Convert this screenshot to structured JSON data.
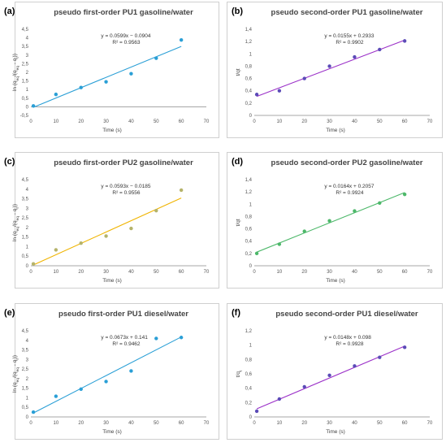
{
  "chart_data": [
    {
      "type": "scatter",
      "panel_label": "(a)",
      "title": "pseudo first-order PU1 gasoline/water",
      "xlabel": "Time (s)",
      "ylabel": "ln (q_eq/(q_eq - q_t))",
      "xlim": [
        0,
        70
      ],
      "xticks": [
        0,
        10,
        20,
        30,
        40,
        50,
        60,
        70
      ],
      "ylim": [
        -0.5,
        4.5
      ],
      "yticks": [
        "-0,5",
        "0",
        "0,5",
        "1",
        "1,5",
        "2",
        "2,5",
        "3",
        "3,5",
        "4",
        "4,5"
      ],
      "x": [
        1,
        10,
        20,
        30,
        40,
        50,
        60
      ],
      "y": [
        0.05,
        0.72,
        1.12,
        1.45,
        1.92,
        2.82,
        3.88
      ],
      "trendline": {
        "slope": 0.0599,
        "intercept": -0.0904
      },
      "equation": "y = 0.0599x − 0.0904",
      "r2": "R² = 0.9563",
      "color": "#2a9fd6",
      "line_color": "#2a9fd6",
      "grid": false
    },
    {
      "type": "scatter",
      "panel_label": "(b)",
      "title": "pseudo second-order PU1 gasoline/water",
      "xlabel": "Time (s)",
      "ylabel": "t/qt",
      "xlim": [
        0,
        70
      ],
      "xticks": [
        0,
        10,
        20,
        30,
        40,
        50,
        60,
        70
      ],
      "ylim": [
        0,
        1.4
      ],
      "yticks": [
        "0",
        "0,2",
        "0,4",
        "0,6",
        "0,8",
        "1",
        "1,2",
        "1,4"
      ],
      "x": [
        1,
        10,
        20,
        30,
        40,
        50,
        60
      ],
      "y": [
        0.34,
        0.4,
        0.6,
        0.8,
        0.95,
        1.07,
        1.21
      ],
      "trendline": {
        "slope": 0.0155,
        "intercept": 0.2933
      },
      "equation": "y = 0.0155x + 0.2933",
      "r2": "R² = 0.9902",
      "color": "#5b4bb7",
      "line_color": "#9b30c8",
      "grid": false
    },
    {
      "type": "scatter",
      "panel_label": "(c)",
      "title": "pseudo first-order PU2 gasoline/water",
      "xlabel": "Time (s)",
      "ylabel": "ln (q_eq/(q_eq - q_t))",
      "xlim": [
        0,
        70
      ],
      "xticks": [
        0,
        10,
        20,
        30,
        40,
        50,
        60,
        70
      ],
      "ylim": [
        0,
        4.5
      ],
      "yticks": [
        "0",
        "0,5",
        "1",
        "1,5",
        "2",
        "2,5",
        "3",
        "3,5",
        "4",
        "4,5"
      ],
      "x": [
        1,
        10,
        20,
        30,
        40,
        50,
        60
      ],
      "y": [
        0.1,
        0.83,
        1.18,
        1.55,
        1.95,
        2.88,
        3.95
      ],
      "trendline": {
        "slope": 0.0593,
        "intercept": -0.0185
      },
      "equation": "y = 0.0593x − 0.0185",
      "r2": "R² = 0.9556",
      "color": "#b5b36a",
      "line_color": "#f0b400",
      "grid": false
    },
    {
      "type": "scatter",
      "panel_label": "(d)",
      "title": "pseudo second-order PU2 gasoline/water",
      "xlabel": "Time (s)",
      "ylabel": "t/qt",
      "xlim": [
        0,
        70
      ],
      "xticks": [
        0,
        10,
        20,
        30,
        40,
        50,
        60,
        70
      ],
      "ylim": [
        0,
        1.4
      ],
      "yticks": [
        "0",
        "0,2",
        "0,4",
        "0,6",
        "0,8",
        "1",
        "1,2",
        "1,4"
      ],
      "x": [
        1,
        10,
        20,
        30,
        40,
        50,
        60
      ],
      "y": [
        0.2,
        0.35,
        0.56,
        0.73,
        0.89,
        1.02,
        1.16
      ],
      "trendline": {
        "slope": 0.0164,
        "intercept": 0.2057
      },
      "equation": "y = 0.0164x + 0.2057",
      "r2": "R² = 0.9924",
      "color": "#4db86a",
      "line_color": "#4db86a",
      "grid": false
    },
    {
      "type": "scatter",
      "panel_label": "(e)",
      "title": "pseudo first-order PU1 diesel/water",
      "xlabel": "Time (s)",
      "ylabel": "ln (q_eq/(q_eq - q_t))",
      "xlim": [
        0,
        70
      ],
      "xticks": [
        0,
        10,
        20,
        30,
        40,
        50,
        60,
        70
      ],
      "ylim": [
        0,
        4.5
      ],
      "yticks": [
        "0",
        "0,5",
        "1",
        "1,5",
        "2",
        "2,5",
        "3",
        "3,5",
        "4",
        "4,5"
      ],
      "x": [
        1,
        10,
        20,
        30,
        40,
        50,
        60
      ],
      "y": [
        0.25,
        1.08,
        1.45,
        1.85,
        2.4,
        4.1,
        4.15
      ],
      "trendline": {
        "slope": 0.0673,
        "intercept": 0.141
      },
      "equation": "y = 0.0673x + 0.141",
      "r2": "R² = 0.9462",
      "color": "#2a9fd6",
      "line_color": "#2a9fd6",
      "grid": false
    },
    {
      "type": "scatter",
      "panel_label": "(f)",
      "title": "pseudo second-order PU1 diesel/water",
      "xlabel": "Time (s)",
      "ylabel": "t/q_t",
      "xlim": [
        0,
        70
      ],
      "xticks": [
        0,
        10,
        20,
        30,
        40,
        50,
        60,
        70
      ],
      "ylim": [
        0,
        1.2
      ],
      "yticks": [
        "0",
        "0,2",
        "0,4",
        "0,6",
        "0,8",
        "1",
        "1,2"
      ],
      "x": [
        1,
        10,
        20,
        30,
        40,
        50,
        60
      ],
      "y": [
        0.08,
        0.25,
        0.42,
        0.58,
        0.71,
        0.83,
        0.97
      ],
      "trendline": {
        "slope": 0.0148,
        "intercept": 0.098
      },
      "equation": "y = 0.0148x + 0.098",
      "r2": "R² = 0.9928",
      "color": "#5b4bb7",
      "line_color": "#9b30c8",
      "grid": false
    }
  ]
}
